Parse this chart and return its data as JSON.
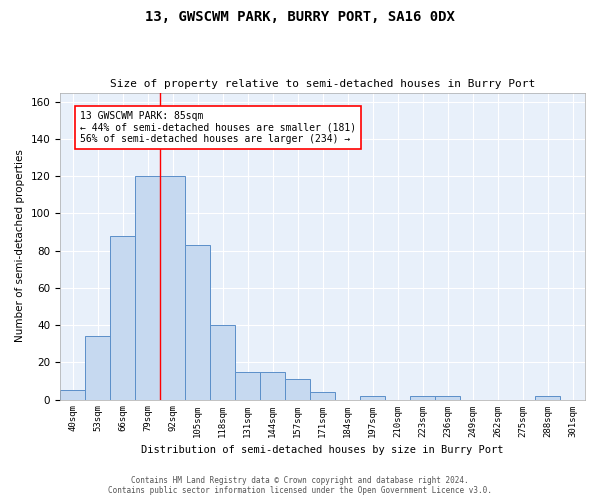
{
  "title": "13, GWSCWM PARK, BURRY PORT, SA16 0DX",
  "subtitle": "Size of property relative to semi-detached houses in Burry Port",
  "xlabel": "Distribution of semi-detached houses by size in Burry Port",
  "ylabel": "Number of semi-detached properties",
  "bar_labels": [
    "40sqm",
    "53sqm",
    "66sqm",
    "79sqm",
    "92sqm",
    "105sqm",
    "118sqm",
    "131sqm",
    "144sqm",
    "157sqm",
    "171sqm",
    "184sqm",
    "197sqm",
    "210sqm",
    "223sqm",
    "236sqm",
    "249sqm",
    "262sqm",
    "275sqm",
    "288sqm",
    "301sqm"
  ],
  "bar_values": [
    5,
    34,
    88,
    120,
    120,
    83,
    40,
    15,
    15,
    11,
    4,
    0,
    2,
    0,
    2,
    2,
    0,
    0,
    0,
    2,
    0
  ],
  "bar_color": "#c6d9f0",
  "bar_edge_color": "#5b8fc9",
  "background_color": "#e8f0fa",
  "grid_color": "#ffffff",
  "annotation_text_line1": "13 GWSCWM PARK: 85sqm",
  "annotation_text_line2": "← 44% of semi-detached houses are smaller (181)",
  "annotation_text_line3": "56% of semi-detached houses are larger (234) →",
  "red_line_x": 3.5,
  "ylim": [
    0,
    165
  ],
  "yticks": [
    0,
    20,
    40,
    60,
    80,
    100,
    120,
    140,
    160
  ],
  "footer_line1": "Contains HM Land Registry data © Crown copyright and database right 2024.",
  "footer_line2": "Contains public sector information licensed under the Open Government Licence v3.0."
}
